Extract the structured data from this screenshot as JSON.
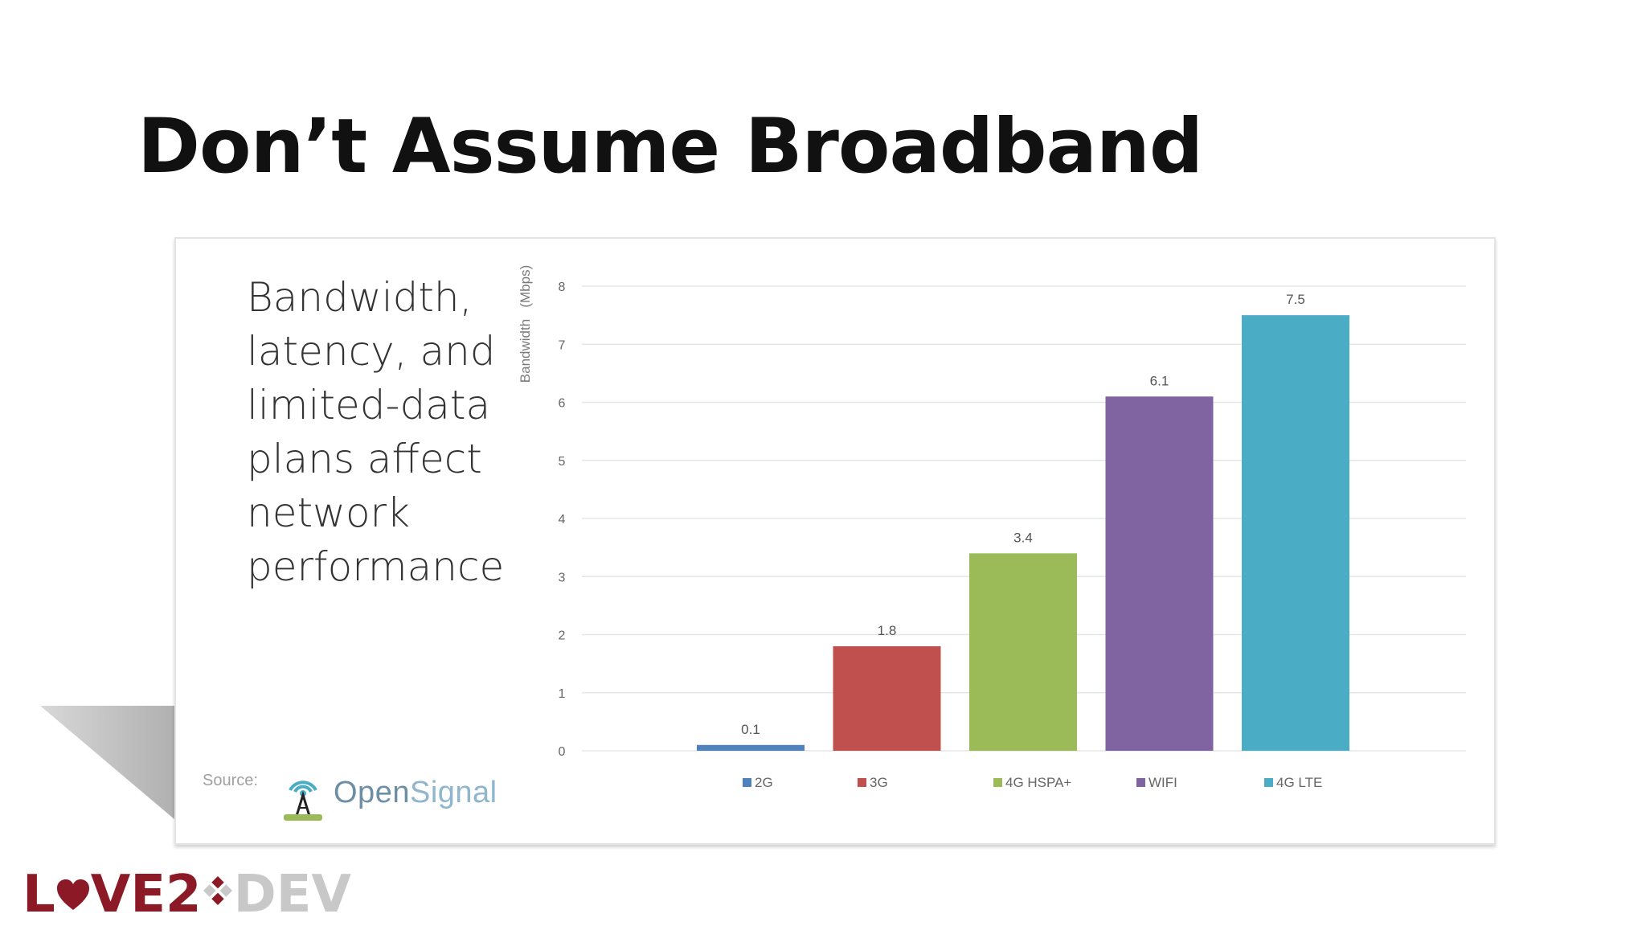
{
  "slide": {
    "title": "Don’t Assume Broadband"
  },
  "panel": {
    "caption_lines": [
      "Bandwidth,",
      "latency, and",
      "limited-data",
      "plans affect",
      "network",
      "performance"
    ],
    "source_label": "Source:",
    "source_name_a": "Open",
    "source_name_b": "Signal"
  },
  "chart_data": {
    "type": "bar",
    "ylabel": "Bandwidth   (Mbps)",
    "ylim": [
      0,
      8
    ],
    "yticks": [
      0,
      1,
      2,
      3,
      4,
      5,
      6,
      7,
      8
    ],
    "grid": true,
    "legend_position": "bottom",
    "categories": [
      "2G",
      "3G",
      "4G HSPA+",
      "WIFI",
      "4G LTE"
    ],
    "values": [
      0.1,
      1.8,
      3.4,
      6.1,
      7.5
    ],
    "value_labels": [
      "0.1",
      "1.8",
      "3.4",
      "6.1",
      "7.5"
    ],
    "colors": [
      "#4f81bd",
      "#c0504d",
      "#9bbb59",
      "#8064a2",
      "#4bacc6"
    ]
  },
  "brand": {
    "letter_l": "L",
    "rest_v_e_2": "VE2",
    "dev": "DEV"
  }
}
